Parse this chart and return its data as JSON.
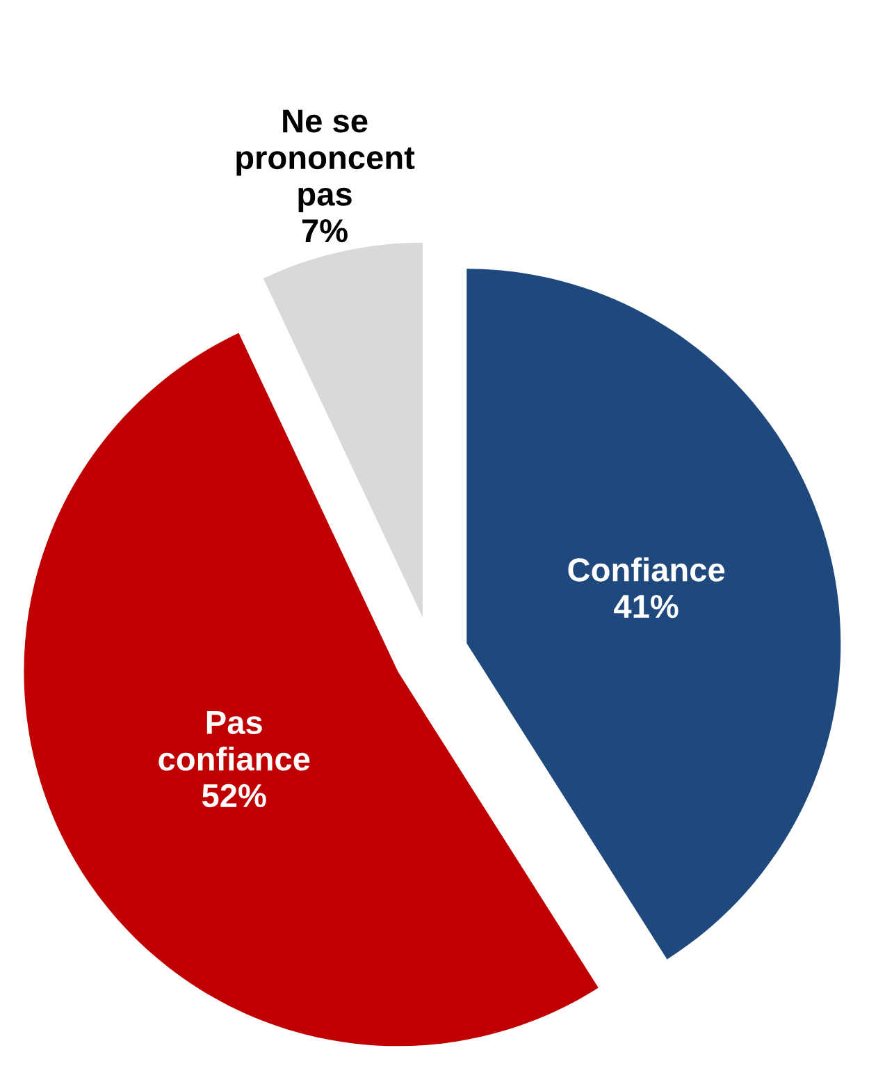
{
  "chart_data": {
    "type": "pie",
    "categories": [
      "Confiance",
      "Pas\nconfiance",
      "Ne se\nprononcent\npas"
    ],
    "values": [
      41,
      52,
      7
    ],
    "value_labels": [
      "41%",
      "52%",
      "7%"
    ],
    "colors": [
      "#1f497d",
      "#c00000",
      "#d9d9d9"
    ]
  }
}
